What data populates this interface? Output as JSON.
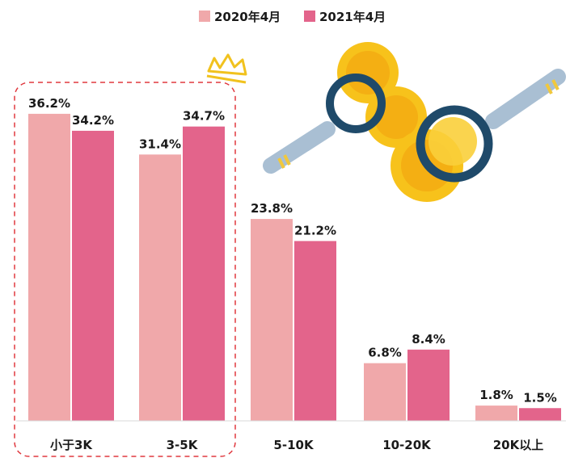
{
  "chart_data": {
    "type": "bar",
    "categories": [
      "小于3K",
      "3-5K",
      "5-10K",
      "10-20K",
      "20K以上"
    ],
    "series": [
      {
        "name": "2020年4月",
        "color": "#f0a8aa",
        "values": [
          36.2,
          31.4,
          23.8,
          6.8,
          1.8
        ],
        "labels": [
          "36.2%",
          "31.4%",
          "23.8%",
          "6.8%",
          "1.8%"
        ]
      },
      {
        "name": "2021年4月",
        "color": "#e3648b",
        "values": [
          34.2,
          34.7,
          21.2,
          8.4,
          1.5
        ],
        "labels": [
          "34.2%",
          "34.7%",
          "21.2%",
          "8.4%",
          "1.5%"
        ]
      }
    ],
    "ylim": [
      0,
      40
    ],
    "grid": false,
    "legend_position": "top-center",
    "highlight_categories": [
      "小于3K",
      "3-5K"
    ],
    "highlight_color": "#e0383e"
  }
}
